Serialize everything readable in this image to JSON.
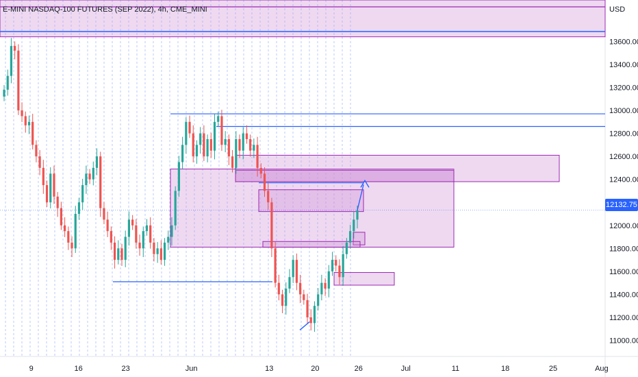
{
  "title": "E-MINI NASDAQ-100 FUTURES (SEP 2022), 4h, CME_MINI",
  "currency": "USD",
  "last_price": "12132.75",
  "y_axis": {
    "min": 10860,
    "max": 13960,
    "ticks": [
      "13600.00",
      "13400.00",
      "13200.00",
      "13000.00",
      "12800.00",
      "12600.00",
      "12400.00",
      "12200.00",
      "12000.00",
      "11800.00",
      "11600.00",
      "11400.00",
      "11200.00",
      "11000.00"
    ]
  },
  "x_axis": {
    "ticks": [
      {
        "label": "9",
        "x": 0.049
      },
      {
        "label": "16",
        "x": 0.123
      },
      {
        "label": "23",
        "x": 0.197
      },
      {
        "label": "Jun",
        "x": 0.3
      },
      {
        "label": "13",
        "x": 0.422
      },
      {
        "label": "20",
        "x": 0.494
      },
      {
        "label": "26",
        "x": 0.562
      },
      {
        "label": "Jul",
        "x": 0.636
      },
      {
        "label": "11",
        "x": 0.714
      },
      {
        "label": "18",
        "x": 0.792
      },
      {
        "label": "25",
        "x": 0.867
      },
      {
        "label": "Aug",
        "x": 0.943
      }
    ]
  },
  "colors": {
    "up": "#26a69a",
    "down": "#ef5350",
    "zone_fill": "#ce93d8",
    "zone_stroke": "#9c27b0",
    "level_line": "#2962ff",
    "grid": "#2962ff"
  },
  "chart_data": {
    "type": "candlestick",
    "title": "E-MINI NASDAQ-100 FUTURES (SEP 2022), 4h, CME_MINI",
    "ylabel": "USD",
    "ylim": [
      10860,
      13960
    ],
    "close_path": [
      13180,
      13300,
      13560,
      13520,
      13000,
      12950,
      12870,
      12900,
      12700,
      12600,
      12500,
      12350,
      12200,
      12450,
      12250,
      12150,
      12000,
      11950,
      11850,
      11800,
      12100,
      12200,
      12350,
      12450,
      12400,
      12500,
      12600,
      12150,
      12050,
      11950,
      11850,
      11700,
      11800,
      11700,
      11900,
      12050,
      12000,
      11850,
      11800,
      11950,
      12000,
      11850,
      11750,
      11800,
      11700,
      11850,
      11900,
      12000,
      12300,
      12550,
      12700,
      12900,
      12800,
      12600,
      12700,
      12800,
      12600,
      12750,
      12650,
      12900,
      12950,
      12700,
      12750,
      12600,
      12500,
      12750,
      12650,
      12800,
      12750,
      12650,
      12700,
      12500,
      12450,
      12300,
      12200,
      11800,
      11500,
      11400,
      11300,
      11450,
      11550,
      11700,
      11500,
      11400,
      11350,
      11200,
      11150,
      11300,
      11400,
      11500,
      11450,
      11600,
      11700,
      11650,
      11550,
      11750,
      11850,
      11950,
      12050,
      12132
    ],
    "zones": [
      {
        "y1": 13960,
        "y2": 13640
      },
      {
        "y1": 12490,
        "y2": 11810
      },
      {
        "y1": 12610,
        "y2": 12380
      },
      {
        "y1": 12480,
        "y2": 12380
      },
      {
        "y1": 12310,
        "y2": 12120
      },
      {
        "y1": 11940,
        "y2": 11830
      },
      {
        "y1": 11860,
        "y2": 11810
      },
      {
        "y1": 11590,
        "y2": 11480
      }
    ],
    "levels": [
      12970,
      12860,
      12370,
      11510
    ]
  }
}
